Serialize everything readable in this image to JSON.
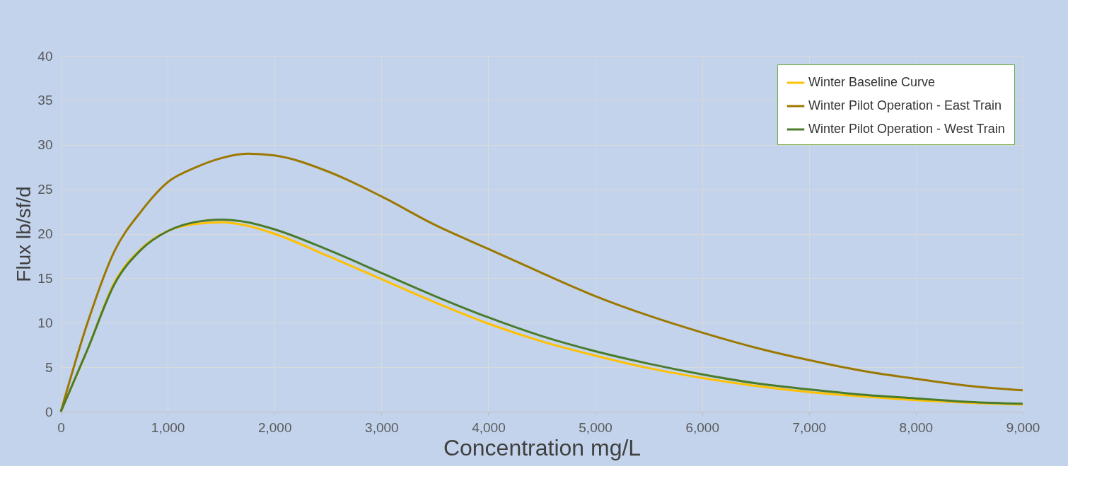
{
  "chart_data": {
    "type": "line",
    "xlabel": "Concentration mg/L",
    "ylabel": "Flux lb/sf/d",
    "x": [
      0,
      250,
      500,
      750,
      1000,
      1250,
      1500,
      1750,
      2000,
      2500,
      3000,
      3500,
      4000,
      4500,
      5000,
      5500,
      6000,
      6500,
      7000,
      7500,
      8000,
      8500,
      9000
    ],
    "series": [
      {
        "name": "Winter Baseline Curve",
        "color": "#ffc000",
        "values": [
          0,
          7,
          14.5,
          18.3,
          20.3,
          21.1,
          21.3,
          20.9,
          20.0,
          17.5,
          14.9,
          12.3,
          9.9,
          7.9,
          6.3,
          4.9,
          3.8,
          2.9,
          2.2,
          1.7,
          1.3,
          1.0,
          0.8
        ]
      },
      {
        "name": "Winter Pilot Operation - East Train",
        "color": "#9c7800",
        "values": [
          0,
          10,
          18,
          22.5,
          25.8,
          27.4,
          28.5,
          29.0,
          28.8,
          27.0,
          24.2,
          21.0,
          18.3,
          15.6,
          13.0,
          10.8,
          8.9,
          7.2,
          5.8,
          4.6,
          3.7,
          2.9,
          2.4
        ]
      },
      {
        "name": "Winter Pilot Operation - West Train",
        "color": "#4a7c2c",
        "values": [
          0,
          7,
          14.3,
          18.2,
          20.3,
          21.3,
          21.6,
          21.3,
          20.5,
          18.2,
          15.6,
          13.0,
          10.6,
          8.5,
          6.8,
          5.4,
          4.2,
          3.2,
          2.5,
          1.9,
          1.5,
          1.1,
          0.9
        ]
      }
    ],
    "xlim": [
      0,
      9000
    ],
    "xticks": [
      {
        "value": 0,
        "label": "0"
      },
      {
        "value": 1000,
        "label": "1,000"
      },
      {
        "value": 2000,
        "label": "2,000"
      },
      {
        "value": 3000,
        "label": "3,000"
      },
      {
        "value": 4000,
        "label": "4,000"
      },
      {
        "value": 5000,
        "label": "5,000"
      },
      {
        "value": 6000,
        "label": "6,000"
      },
      {
        "value": 7000,
        "label": "7,000"
      },
      {
        "value": 8000,
        "label": "8,000"
      },
      {
        "value": 9000,
        "label": "9,000"
      }
    ],
    "ylim": [
      0,
      40
    ],
    "yticks": [
      0,
      5,
      10,
      15,
      20,
      25,
      30,
      35,
      40
    ],
    "grid": true,
    "legend": "top right",
    "marker": "none",
    "line_style": "solid"
  }
}
